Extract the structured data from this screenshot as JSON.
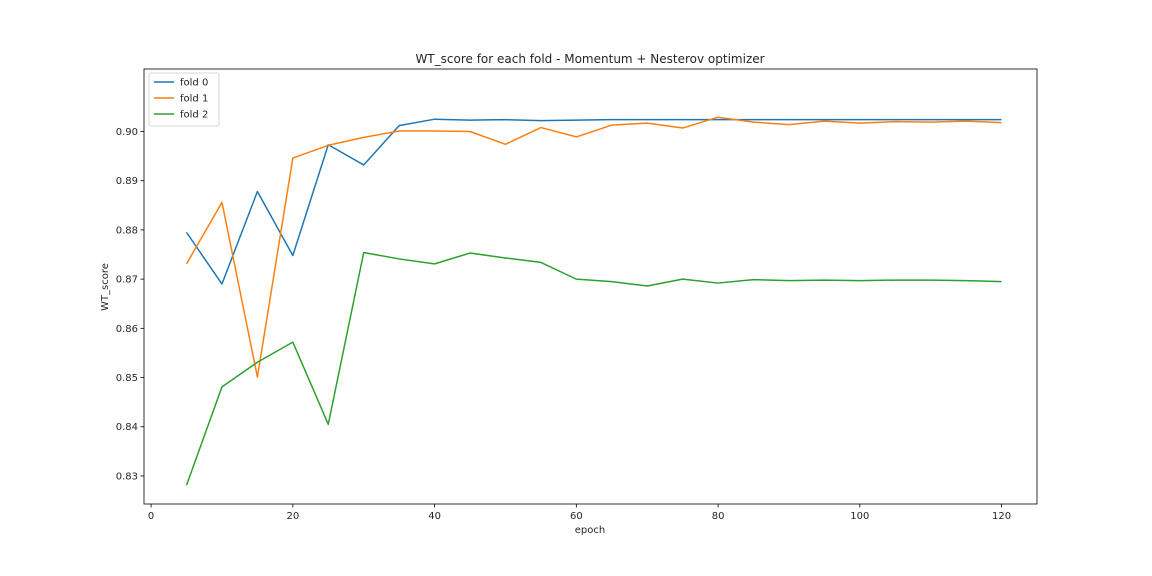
{
  "chart_data": {
    "type": "line",
    "title": "WT_score for each fold - Momentum + Nesterov optimizer",
    "xlabel": "epoch",
    "ylabel": "WT_score",
    "xlim": [
      -1,
      125
    ],
    "ylim": [
      0.8243,
      0.9127
    ],
    "xticks": [
      0,
      20,
      40,
      60,
      80,
      100,
      120
    ],
    "yticks": [
      0.83,
      0.84,
      0.85,
      0.86,
      0.87,
      0.88,
      0.89,
      0.9
    ],
    "ytick_format": 2,
    "grid": false,
    "legend_position": "top-left",
    "x": [
      5,
      10,
      15,
      20,
      25,
      30,
      35,
      40,
      45,
      50,
      55,
      60,
      65,
      70,
      75,
      80,
      85,
      90,
      95,
      100,
      105,
      110,
      115,
      120
    ],
    "series": [
      {
        "name": "fold 0",
        "color": "#1f77b4",
        "values": [
          0.8795,
          0.869,
          0.8878,
          0.8748,
          0.8973,
          0.8932,
          0.9012,
          0.9025,
          0.9023,
          0.9024,
          0.9022,
          0.9023,
          0.9024,
          0.9024,
          0.9024,
          0.9024,
          0.9024,
          0.9024,
          0.9024,
          0.9024,
          0.9024,
          0.9024,
          0.9024,
          0.9024
        ]
      },
      {
        "name": "fold 1",
        "color": "#ff7f0e",
        "values": [
          0.8731,
          0.8856,
          0.8501,
          0.8946,
          0.8972,
          0.8988,
          0.9001,
          0.9001,
          0.9,
          0.8974,
          0.9008,
          0.8989,
          0.9013,
          0.9017,
          0.9007,
          0.9029,
          0.9019,
          0.9014,
          0.9021,
          0.9017,
          0.902,
          0.9019,
          0.9021,
          0.9018
        ]
      },
      {
        "name": "fold 2",
        "color": "#2ca02c",
        "values": [
          0.8281,
          0.8481,
          0.8531,
          0.8572,
          0.8405,
          0.8754,
          0.8741,
          0.8731,
          0.8753,
          0.8743,
          0.8734,
          0.87,
          0.8695,
          0.8686,
          0.87,
          0.8692,
          0.8699,
          0.8697,
          0.8698,
          0.8697,
          0.8698,
          0.8698,
          0.8697,
          0.8695
        ]
      }
    ]
  }
}
